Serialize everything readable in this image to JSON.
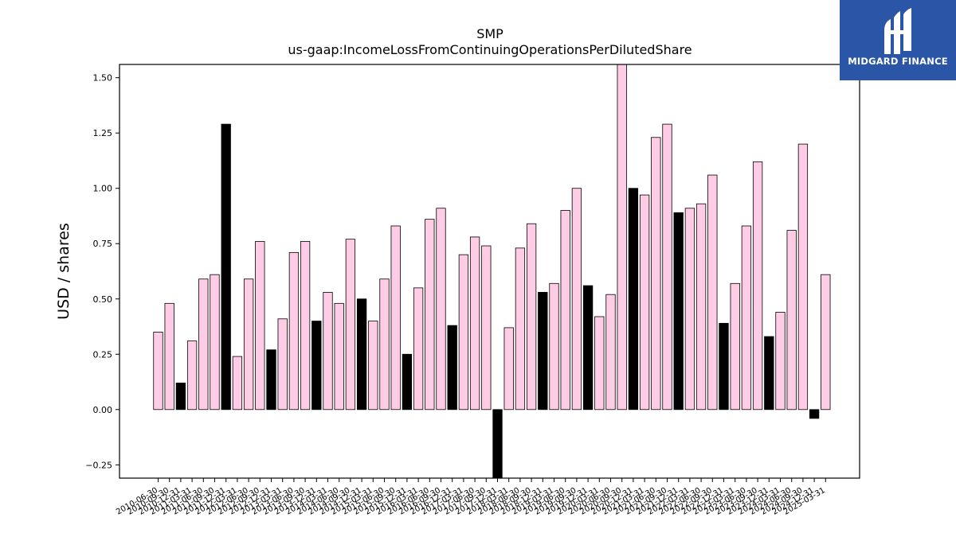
{
  "brand": {
    "name": "MIDGARD FINANCE",
    "bg_color": "#2b55a6"
  },
  "chart_data": {
    "type": "bar",
    "title": "SMP",
    "subtitle": "us-gaap:IncomeLossFromContinuingOperationsPerDilutedShare",
    "xlabel": "",
    "ylabel": "USD / shares",
    "ylim": [
      -0.31,
      1.56
    ],
    "yticks": [
      -0.25,
      0.0,
      0.25,
      0.5,
      0.75,
      1.0,
      1.25,
      1.5
    ],
    "grid": false,
    "colors": {
      "quarterly": "#ffcce6",
      "annual": "#000000",
      "edge": "#000000"
    },
    "categories": [
      "2010-06-30",
      "2010-09-30",
      "2010-12-31",
      "2011-03-31",
      "2011-06-30",
      "2011-09-30",
      "2011-12-31",
      "2012-03-31",
      "2012-06-30",
      "2012-09-30",
      "2012-12-31",
      "2013-03-31",
      "2013-06-30",
      "2013-09-30",
      "2013-12-31",
      "2014-03-31",
      "2014-06-30",
      "2014-09-30",
      "2014-12-31",
      "2015-03-31",
      "2015-06-30",
      "2015-09-30",
      "2015-12-31",
      "2016-03-31",
      "2016-06-30",
      "2016-09-30",
      "2016-12-31",
      "2017-03-31",
      "2017-06-30",
      "2017-09-30",
      "2017-12-31",
      "2018-03-31",
      "2018-06-30",
      "2018-09-30",
      "2018-12-31",
      "2019-03-31",
      "2019-06-30",
      "2019-09-30",
      "2019-12-31",
      "2020-03-31",
      "2020-06-30",
      "2020-09-30",
      "2020-12-31",
      "2021-03-31",
      "2021-06-30",
      "2021-09-30",
      "2021-12-31",
      "2022-03-31",
      "2022-06-30",
      "2022-09-30",
      "2022-12-31",
      "2023-03-31",
      "2023-06-30",
      "2023-09-30",
      "2023-12-31",
      "2024-03-31",
      "2024-06-30",
      "2024-09-30",
      "2024-12-31",
      "2025-03-31"
    ],
    "values": [
      0.35,
      0.48,
      0.12,
      0.31,
      0.59,
      0.61,
      1.29,
      0.24,
      0.59,
      0.76,
      0.27,
      0.41,
      0.71,
      0.76,
      0.4,
      0.53,
      0.48,
      0.77,
      0.5,
      0.4,
      0.59,
      0.83,
      0.25,
      0.55,
      0.86,
      0.91,
      0.38,
      0.7,
      0.78,
      0.74,
      -0.35,
      0.37,
      0.73,
      0.84,
      0.53,
      0.57,
      0.9,
      1.0,
      0.56,
      0.42,
      0.52,
      1.58,
      1.0,
      0.97,
      1.23,
      1.29,
      0.89,
      0.91,
      0.93,
      1.06,
      0.39,
      0.57,
      0.83,
      1.12,
      0.33,
      0.44,
      0.81,
      1.2,
      -0.04,
      0.61
    ],
    "annual": [
      false,
      false,
      true,
      false,
      false,
      false,
      true,
      false,
      false,
      false,
      true,
      false,
      false,
      false,
      true,
      false,
      false,
      false,
      true,
      false,
      false,
      false,
      true,
      false,
      false,
      false,
      true,
      false,
      false,
      false,
      true,
      false,
      false,
      false,
      true,
      false,
      false,
      false,
      true,
      false,
      false,
      false,
      true,
      false,
      false,
      false,
      true,
      false,
      false,
      false,
      true,
      false,
      false,
      false,
      true,
      false,
      false,
      false,
      true,
      false
    ]
  }
}
